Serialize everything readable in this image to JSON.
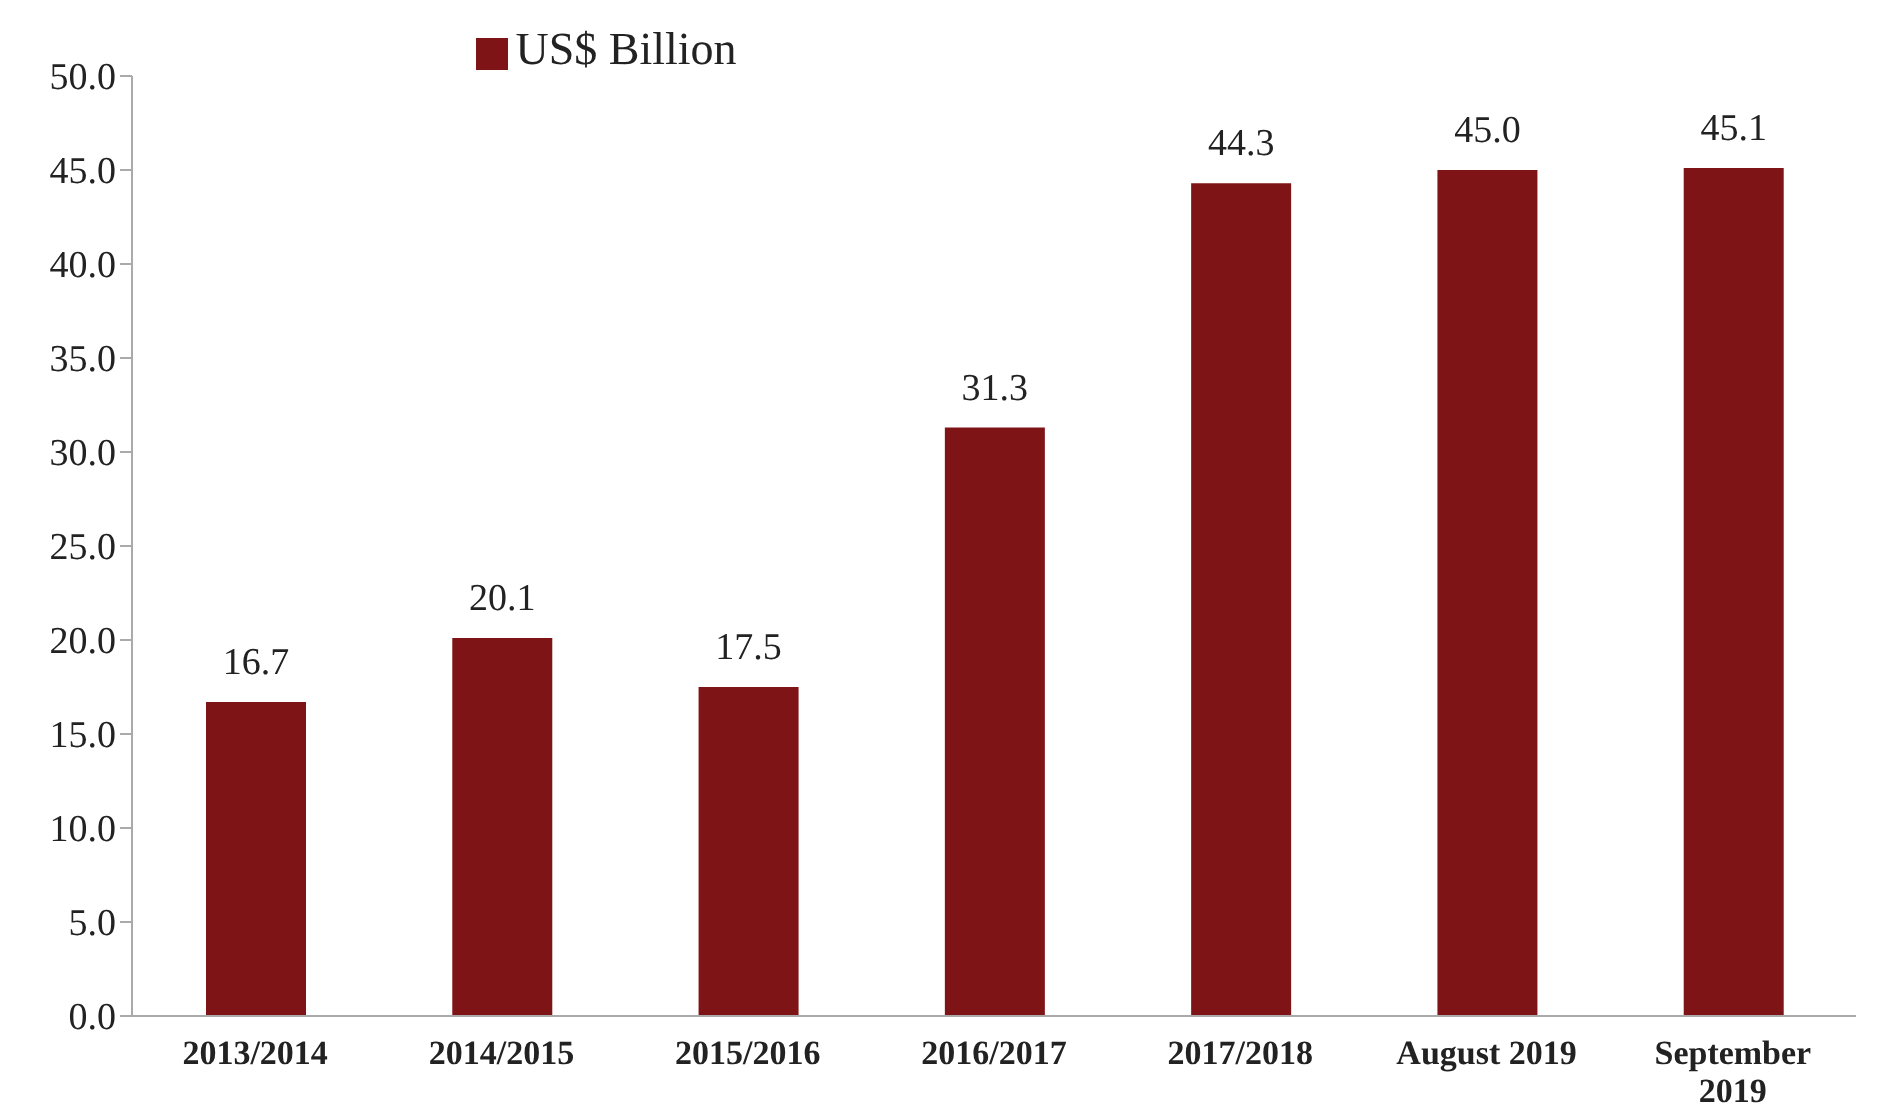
{
  "chart_data": {
    "type": "bar",
    "categories": [
      "2013/2014",
      "2014/2015",
      "2015/2016",
      "2016/2017",
      "2017/2018",
      "August 2019",
      "September 2019"
    ],
    "series": [
      {
        "name": "US$ Billion",
        "color": "#7f1416",
        "values": [
          16.7,
          20.1,
          17.5,
          31.3,
          44.3,
          45.0,
          45.1
        ],
        "value_labels": [
          "16.7",
          "20.1",
          "17.5",
          "31.3",
          "44.3",
          "45.0",
          "45.1"
        ]
      }
    ],
    "ylim": [
      0,
      50
    ],
    "yticks": [
      {
        "value": 0,
        "label": "0.0"
      },
      {
        "value": 5,
        "label": "5.0"
      },
      {
        "value": 10,
        "label": "10.0"
      },
      {
        "value": 15,
        "label": "15.0"
      },
      {
        "value": 20,
        "label": "20.0"
      },
      {
        "value": 25,
        "label": "25.0"
      },
      {
        "value": 30,
        "label": "30.0"
      },
      {
        "value": 35,
        "label": "35.0"
      },
      {
        "value": 40,
        "label": "40.0"
      },
      {
        "value": 45,
        "label": "45.0"
      },
      {
        "value": 50,
        "label": "50.0"
      }
    ],
    "legend": "top",
    "grid": false
  }
}
